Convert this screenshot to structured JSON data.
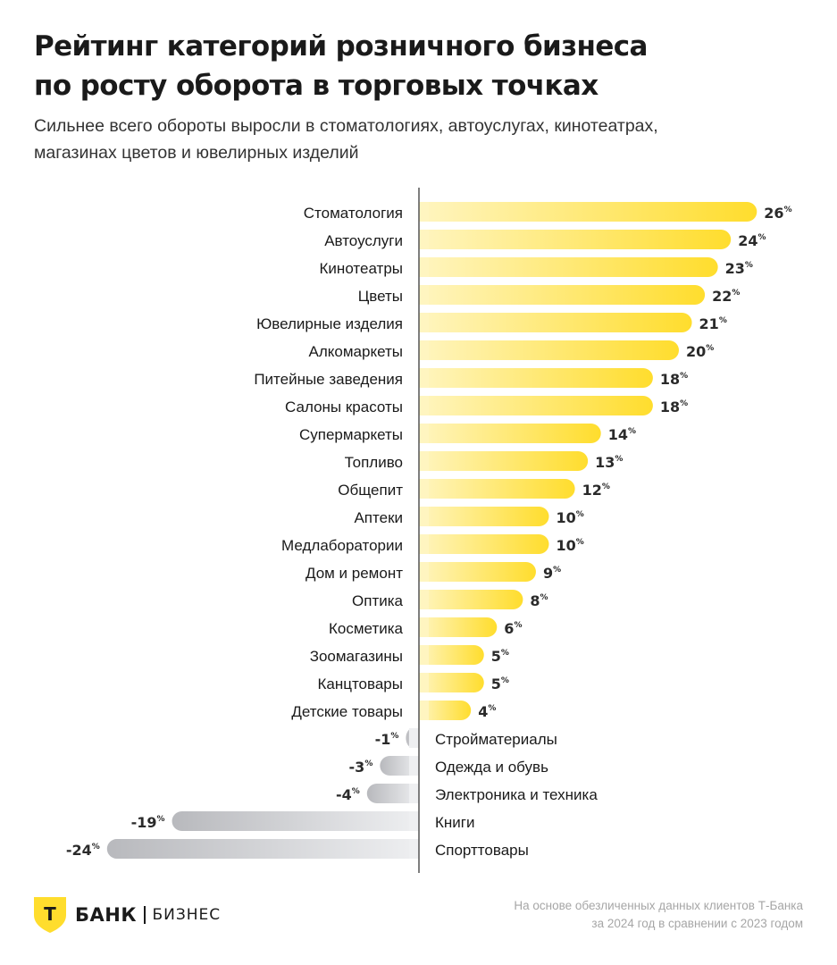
{
  "title_lines": [
    "Рейтинг категорий розничного бизнеса",
    "по росту оборота в торговых точках"
  ],
  "subtitle_lines": [
    "Сильнее всего обороты выросли в стоматологиях, автоуслугах, кинотеатрах,",
    "магазинах цветов и ювелирных изделий"
  ],
  "chart_data": {
    "type": "bar",
    "orientation": "horizontal",
    "unit": "%",
    "categories": [
      "Стоматология",
      "Автоуслуги",
      "Кинотеатры",
      "Цветы",
      "Ювелирные изделия",
      "Алкомаркеты",
      "Питейные заведения",
      "Салоны красоты",
      "Супермаркеты",
      "Топливо",
      "Общепит",
      "Аптеки",
      "Медлаборатории",
      "Дом и ремонт",
      "Оптика",
      "Косметика",
      "Зоомагазины",
      "Канцтовары",
      "Детские товары",
      "Стройматериалы",
      "Одежда и обувь",
      "Электроника и техника",
      "Книги",
      "Спорттовары"
    ],
    "values": [
      26,
      24,
      23,
      22,
      21,
      20,
      18,
      18,
      14,
      13,
      12,
      10,
      10,
      9,
      8,
      6,
      5,
      5,
      4,
      -1,
      -3,
      -4,
      -19,
      -24
    ],
    "colors": {
      "positive": "#ffdd2d",
      "positive_light": "#fff5c0",
      "negative": "#b8b9bd",
      "negative_light": "#eeeff1",
      "axis": "#555555"
    }
  },
  "footer": {
    "logo_letter": "Т",
    "brand": "БАНК",
    "brand_sub": "БИЗНЕС",
    "note_lines": [
      "На основе обезличенных данных клиентов Т-Банка",
      "за 2024 год в сравнении с 2023 годом"
    ]
  }
}
